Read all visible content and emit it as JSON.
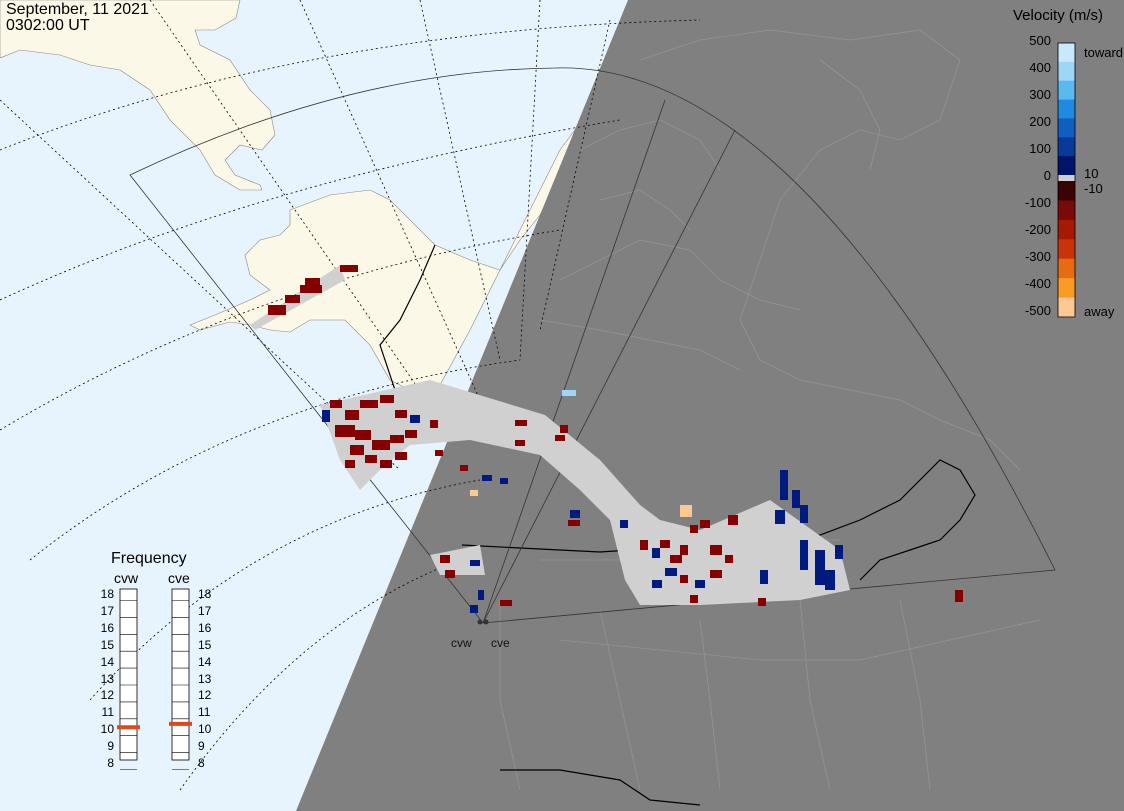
{
  "header": {
    "date": "September, 11 2021",
    "time": "0302:00 UT"
  },
  "frequency_panel": {
    "title": "Frequency",
    "radars": [
      {
        "name": "cvw",
        "selected_mhz": 10.5
      },
      {
        "name": "cve",
        "selected_mhz": 10.7
      }
    ],
    "ticks": [
      "18",
      "17",
      "16",
      "15",
      "14",
      "13",
      "12",
      "11",
      "10",
      "9",
      "8"
    ]
  },
  "colorbar": {
    "title": "Velocity (m/s)",
    "ticks": [
      "500",
      "400",
      "300",
      "200",
      "100",
      "0",
      "-100",
      "-200",
      "-300",
      "-400",
      "-500"
    ],
    "label_toward": "toward",
    "label_away": "away",
    "label_pos": "10",
    "label_neg": "-10",
    "colors": [
      "#c9e8fb",
      "#9fd6f7",
      "#59b9f0",
      "#1e8be0",
      "#0f5ec0",
      "#093a9a",
      "#03136a",
      "#3a0306",
      "#7a0a08",
      "#a41a05",
      "#c8340a",
      "#e56c10",
      "#fb9a25",
      "#fdc892"
    ]
  },
  "sites": [
    {
      "name": "cvw"
    },
    {
      "name": "cve"
    }
  ],
  "colors": {
    "ocean": "#e8f4fd",
    "land_day": "#fbf8e8",
    "night": "#808080",
    "fov_fill": "#d0d0d0",
    "toward": "#001a80",
    "away": "#850000",
    "freq_marker": "#e0471c"
  }
}
